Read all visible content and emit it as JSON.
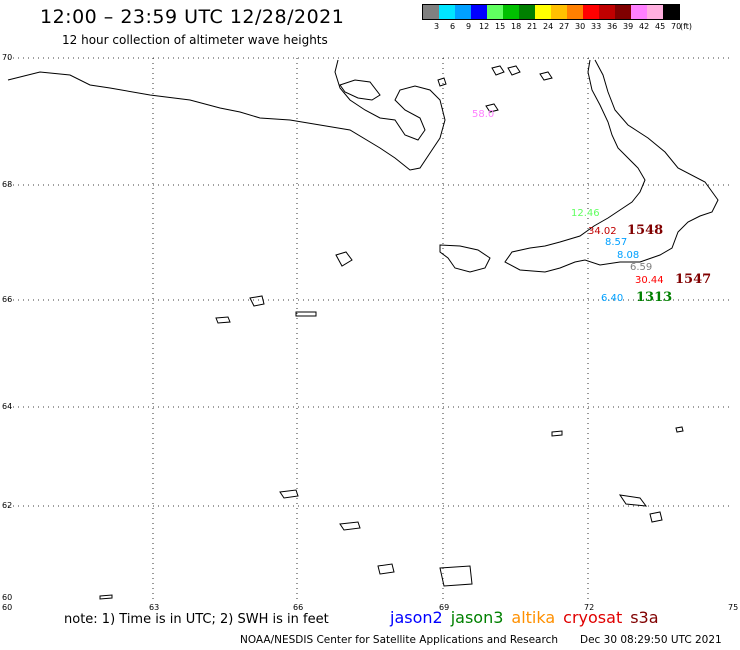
{
  "title": "12:00 – 23:59 UTC 12/28/2021",
  "subtitle": "12 hour collection of altimeter wave heights",
  "legend": {
    "unit": "(ft)",
    "labels": [
      "3",
      "6",
      "9",
      "12",
      "15",
      "18",
      "21",
      "24",
      "27",
      "30",
      "33",
      "36",
      "39",
      "42",
      "45",
      "70"
    ],
    "colors": [
      "#808080",
      "#00e5ff",
      "#00a0ff",
      "#0000ff",
      "#60ff60",
      "#00c000",
      "#008000",
      "#ffff00",
      "#ffc000",
      "#ff8000",
      "#ff0000",
      "#c00000",
      "#800000",
      "#ff80ff",
      "#ffb0e0",
      "#000000"
    ]
  },
  "axes": {
    "x_ticks": [
      "63",
      "66",
      "69",
      "72",
      "75"
    ],
    "y_ticks": [
      "70",
      "68",
      "66",
      "64",
      "62",
      "60"
    ],
    "corner_labels": [
      "60",
      "60"
    ]
  },
  "observations": [
    {
      "value": "58.0",
      "color": "#ff80ff"
    },
    {
      "value": "12.46",
      "color": "#60ff60"
    },
    {
      "value": "34.02",
      "color": "#c00000"
    },
    {
      "value": "8.57",
      "color": "#00a0ff"
    },
    {
      "value": "8.08",
      "color": "#00a0ff"
    },
    {
      "value": "6.59",
      "color": "#808080"
    },
    {
      "value": "30.44",
      "color": "#ff0000"
    },
    {
      "value": "6.40",
      "color": "#00a0ff"
    }
  ],
  "track_times": [
    {
      "value": "1548",
      "color": "#800000"
    },
    {
      "value": "1547",
      "color": "#800000"
    },
    {
      "value": "1313",
      "color": "#008000"
    }
  ],
  "note": "note: 1) Time is in UTC; 2) SWH is in feet",
  "missions": [
    {
      "name": "jason2",
      "color": "#0000ff"
    },
    {
      "name": "jason3",
      "color": "#008000"
    },
    {
      "name": "altika",
      "color": "#ff9000"
    },
    {
      "name": "cryosat",
      "color": "#e00000"
    },
    {
      "name": "s3a",
      "color": "#800000"
    }
  ],
  "credit": "NOAA/NESDIS Center for Satellite Applications and Research",
  "issued": "Dec 30 08:29:50 UTC 2021"
}
